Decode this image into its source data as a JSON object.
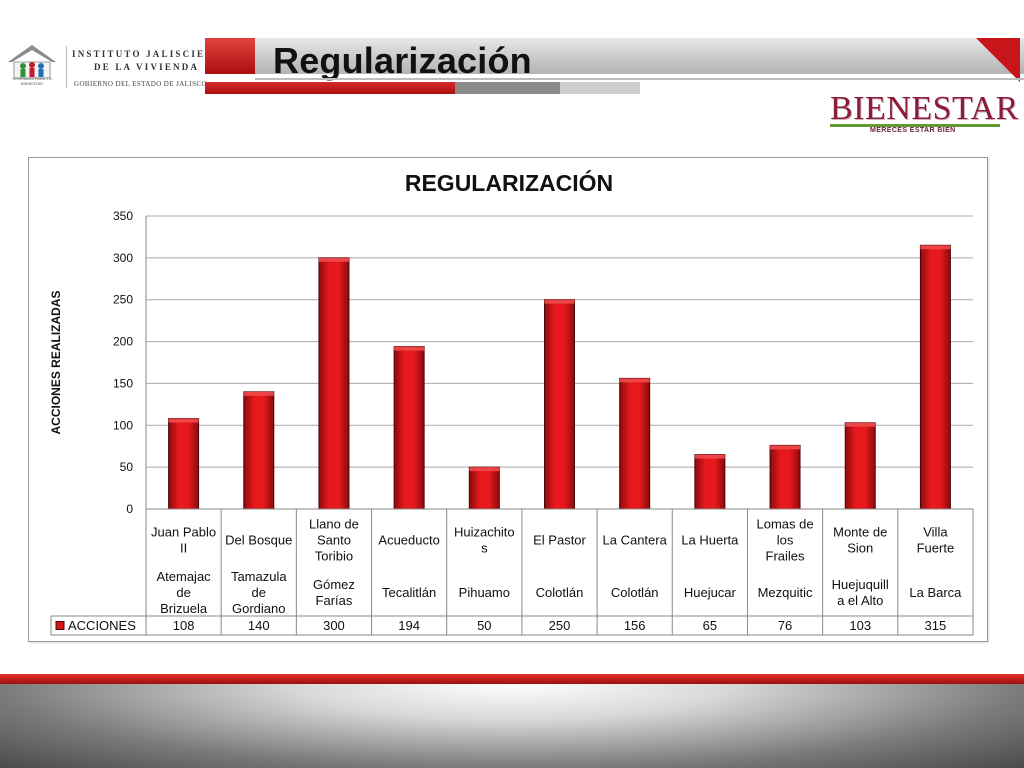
{
  "header": {
    "institute_line1": "INSTITUTO JALISCIENSE",
    "institute_line2": "DE LA VIVIENDA",
    "government": "GOBIERNO DEL ESTADO DE JALISCO",
    "house_caption": "VIVIENDAS PARA TU BIENESTAR",
    "slide_title": "Regularización"
  },
  "brand": {
    "name": "BIENESTAR",
    "tagline": "MERECES ESTAR BIEN",
    "accent_color": "#c8151a"
  },
  "chart_data": {
    "type": "bar",
    "title": "REGULARIZACIÓN",
    "ylabel": "ACCIONES REALIZADAS",
    "xlabel": "",
    "ylim": [
      0,
      350
    ],
    "yticks": [
      0,
      50,
      100,
      150,
      200,
      250,
      300,
      350
    ],
    "grid": true,
    "bar_color": "#d8151a",
    "categories": [
      {
        "locality": "Juan Pablo II",
        "municipality": "Atemajac de Brizuela"
      },
      {
        "locality": "Del Bosque",
        "municipality": "Tamazula de Gordiano"
      },
      {
        "locality": "Llano de Santo Toribio",
        "municipality": "Gómez Farías"
      },
      {
        "locality": "Acueducto",
        "municipality": "Tecalitlán"
      },
      {
        "locality": "Huizachitos",
        "municipality": "Pihuamo"
      },
      {
        "locality": "El Pastor",
        "municipality": "Colotlán"
      },
      {
        "locality": "La Cantera",
        "municipality": "Colotlán"
      },
      {
        "locality": "La Huerta",
        "municipality": "Huejucar"
      },
      {
        "locality": "Lomas de los Frailes",
        "municipality": "Mezquitic"
      },
      {
        "locality": "Monte de Sion",
        "municipality": "Huejuquilla el Alto"
      },
      {
        "locality": "Villa Fuerte",
        "municipality": "La Barca"
      }
    ],
    "series": [
      {
        "name": "ACCIONES",
        "values": [
          108,
          140,
          300,
          194,
          50,
          250,
          156,
          65,
          76,
          103,
          315
        ]
      }
    ],
    "legend": "data-table"
  }
}
